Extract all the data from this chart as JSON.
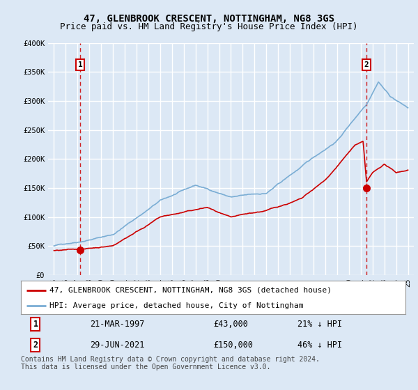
{
  "title": "47, GLENBROOK CRESCENT, NOTTINGHAM, NG8 3GS",
  "subtitle": "Price paid vs. HM Land Registry's House Price Index (HPI)",
  "ylim": [
    0,
    400000
  ],
  "yticks": [
    0,
    50000,
    100000,
    150000,
    200000,
    250000,
    300000,
    350000,
    400000
  ],
  "ytick_labels": [
    "£0",
    "£50K",
    "£100K",
    "£150K",
    "£200K",
    "£250K",
    "£300K",
    "£350K",
    "£400K"
  ],
  "xlim_start": 1994.5,
  "xlim_end": 2025.5,
  "sale1_year": 1997.22,
  "sale1_price": 43000,
  "sale2_year": 2021.49,
  "sale2_price": 150000,
  "red_color": "#cc0000",
  "blue_color": "#7aadd4",
  "background_color": "#dce8f5",
  "plot_bg_color": "#dce8f5",
  "grid_color": "#ffffff",
  "legend_label_red": "47, GLENBROOK CRESCENT, NOTTINGHAM, NG8 3GS (detached house)",
  "legend_label_blue": "HPI: Average price, detached house, City of Nottingham",
  "annotation1_num": "1",
  "annotation1_date": "21-MAR-1997",
  "annotation1_price": "£43,000",
  "annotation1_hpi": "21% ↓ HPI",
  "annotation2_num": "2",
  "annotation2_date": "29-JUN-2021",
  "annotation2_price": "£150,000",
  "annotation2_hpi": "46% ↓ HPI",
  "footnote": "Contains HM Land Registry data © Crown copyright and database right 2024.\nThis data is licensed under the Open Government Licence v3.0.",
  "title_fontsize": 10,
  "subtitle_fontsize": 9,
  "tick_fontsize": 7.5,
  "legend_fontsize": 8,
  "annot_fontsize": 8.5,
  "footnote_fontsize": 7
}
